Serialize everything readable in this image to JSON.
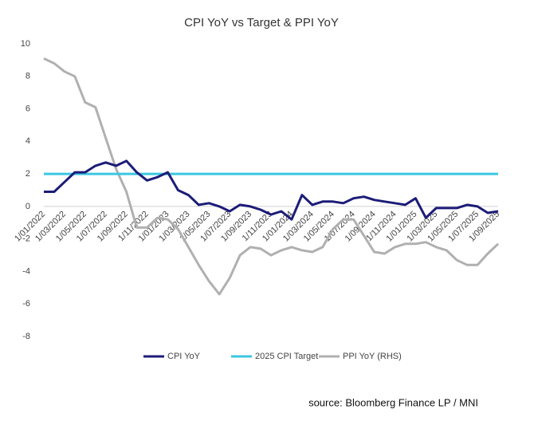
{
  "chart_data": {
    "type": "line",
    "title": "CPI YoY vs Target  & PPI YoY",
    "source": "source: Bloomberg Finance LP / MNI",
    "categories": [
      "1/01/2022",
      null,
      "1/03/2022",
      null,
      "1/05/2022",
      null,
      "1/07/2022",
      null,
      "1/09/2022",
      null,
      "1/11/2022",
      null,
      "1/01/2023",
      null,
      "1/03/2023",
      null,
      "1/05/2023",
      null,
      "1/07/2023",
      null,
      "1/09/2023",
      null,
      "1/11/2023",
      null,
      "1/01/2024",
      null,
      "1/03/2024",
      null,
      "1/05/2024",
      null,
      "1/07/2024",
      null,
      "1/09/2024",
      null,
      "1/11/2024",
      null,
      "1/01/2025",
      null,
      "1/03/2025",
      null,
      "1/05/2025",
      null,
      "1/07/2025",
      null,
      "1/09/2025"
    ],
    "series": [
      {
        "name": "CPI YoY",
        "color": "#1c1c78",
        "values": [
          0.9,
          0.9,
          1.5,
          2.1,
          2.1,
          2.5,
          2.7,
          2.5,
          2.8,
          2.1,
          1.6,
          1.8,
          2.1,
          1.0,
          0.7,
          0.1,
          0.2,
          0.0,
          -0.3,
          0.1,
          0.0,
          -0.2,
          -0.5,
          -0.3,
          -0.8,
          0.7,
          0.1,
          0.3,
          0.3,
          0.2,
          0.5,
          0.6,
          0.4,
          0.3,
          0.2,
          0.1,
          0.5,
          -0.7,
          -0.1,
          -0.1,
          -0.1,
          0.1,
          0.0,
          -0.4,
          -0.3
        ]
      },
      {
        "name": "2025 CPI Target",
        "color": "#3cc6e0",
        "values": [
          2,
          2,
          2,
          2,
          2,
          2,
          2,
          2,
          2,
          2,
          2,
          2,
          2,
          2,
          2,
          2,
          2,
          2,
          2,
          2,
          2,
          2,
          2,
          2,
          2,
          2,
          2,
          2,
          2,
          2,
          2,
          2,
          2,
          2,
          2,
          2,
          2,
          2,
          2,
          2,
          2,
          2,
          2,
          2,
          2
        ]
      },
      {
        "name": "PPI YoY (RHS)",
        "color": "#b0b0b0",
        "values": [
          9.1,
          8.8,
          8.3,
          8.0,
          6.4,
          6.1,
          4.2,
          2.3,
          0.9,
          -1.3,
          -1.3,
          -0.7,
          -0.8,
          -1.4,
          -2.5,
          -3.6,
          -4.6,
          -5.4,
          -4.4,
          -3.0,
          -2.5,
          -2.6,
          -3.0,
          -2.7,
          -2.5,
          -2.7,
          -2.8,
          -2.5,
          -1.4,
          -0.8,
          -0.8,
          -1.8,
          -2.8,
          -2.9,
          -2.5,
          -2.3,
          -2.3,
          -2.2,
          -2.5,
          -2.7,
          -3.3,
          -3.6,
          -3.6,
          -2.9,
          -2.3
        ]
      }
    ],
    "ylim": [
      -8,
      10
    ],
    "yticks": [
      -8,
      -6,
      -4,
      -2,
      0,
      2,
      4,
      6,
      8,
      10
    ]
  }
}
